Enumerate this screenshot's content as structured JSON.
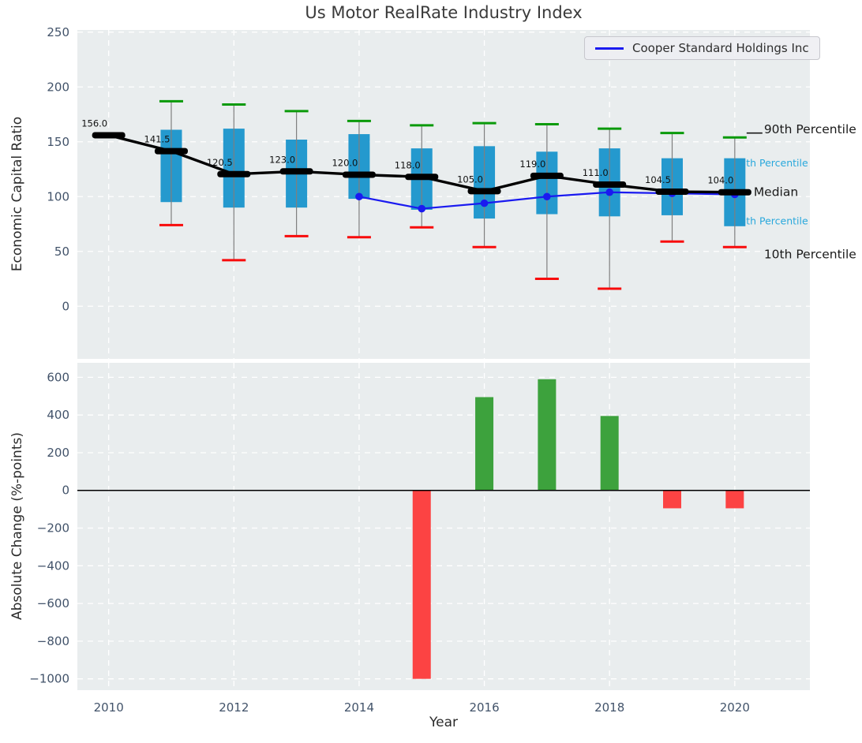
{
  "title": "Us Motor RealRate Industry Index",
  "legend": {
    "label": "Cooper Standard Holdings Inc"
  },
  "axis_labels": {
    "top_y": "Economic Capital Ratio",
    "bottom_y": "Absolute Change (%-points)",
    "x": "Year"
  },
  "colors": {
    "plot_bg": "#e9edee",
    "grid": "#ffffff",
    "tick_text": "#42536a",
    "box_fill": "#2499ce",
    "whisker": "#7f7f7f",
    "cap_top": "#0a9a0a",
    "cap_bottom": "#f80b0b",
    "median": "#000000",
    "company_line": "#1a1af0",
    "bar_positive": "#3da23d",
    "bar_negative": "#fc4343",
    "label_dark": "#1a1a1a",
    "label_cyan": "#29a8dc",
    "zero_line": "#000000",
    "annotation_text": "#111111"
  },
  "chart_data": [
    {
      "type": "boxplot+line",
      "title": "Us Motor RealRate Industry Index",
      "ylabel": "Economic Capital Ratio",
      "xlabel": "Year",
      "grid": true,
      "legend_position": "upper right",
      "xlim": [
        2009.5,
        2021.2
      ],
      "ylim": [
        -48,
        252
      ],
      "yticks": [
        0,
        50,
        100,
        150,
        200,
        250
      ],
      "ytick_labels": [
        "0",
        "50",
        "100",
        "150",
        "200",
        "250"
      ],
      "xticks": [
        2010,
        2012,
        2014,
        2016,
        2018,
        2020
      ],
      "xtick_labels": [
        "2010",
        "2012",
        "2014",
        "2016",
        "2018",
        "2020"
      ],
      "years": [
        2010,
        2011,
        2012,
        2013,
        2014,
        2015,
        2016,
        2017,
        2018,
        2019,
        2020
      ],
      "median": [
        156.0,
        141.5,
        120.5,
        123.0,
        120.0,
        118.0,
        105.0,
        119.0,
        111.0,
        104.5,
        104.0
      ],
      "median_labels": [
        "156.0",
        "141.5",
        "120.5",
        "123.0",
        "120.0",
        "118.0",
        "105.0",
        "119.0",
        "111.0",
        "104.5",
        "104.0"
      ],
      "p10": [
        null,
        74,
        42,
        64,
        63,
        72,
        54,
        25,
        16,
        59,
        54
      ],
      "p25": [
        null,
        95,
        90,
        90,
        98,
        88,
        80,
        84,
        82,
        83,
        73
      ],
      "p75": [
        null,
        161,
        162,
        152,
        157,
        144,
        146,
        141,
        144,
        135,
        135
      ],
      "p90": [
        null,
        187,
        184,
        178,
        169,
        165,
        167,
        166,
        162,
        158,
        154
      ],
      "series": [
        {
          "name": "Cooper Standard Holdings Inc",
          "x": [
            2014,
            2015,
            2016,
            2017,
            2018,
            2019,
            2020
          ],
          "y": [
            100,
            89,
            94,
            100,
            104,
            103,
            102
          ]
        }
      ],
      "right_labels": [
        {
          "text": "90th Percentile",
          "color": "dark",
          "v": 161.5,
          "dx": 37,
          "size": 15.5
        },
        {
          "text": "75th Percentile",
          "color": "cyan",
          "v": 130.5,
          "dx": -1.5,
          "size": 12.5
        },
        {
          "text": "Median",
          "color": "dark",
          "v": 104.0,
          "dx": 24,
          "size": 15.5
        },
        {
          "text": "25th Percentile",
          "color": "cyan",
          "v": 77.5,
          "dx": -1.5,
          "size": 12.5
        },
        {
          "text": "10th Percentile",
          "color": "dark",
          "v": 47.5,
          "dx": 37,
          "size": 15.5
        }
      ]
    },
    {
      "type": "bar",
      "ylabel": "Absolute Change (%-points)",
      "xlabel": "Year",
      "grid": true,
      "xlim": [
        2009.5,
        2021.2
      ],
      "ylim": [
        -1060,
        677
      ],
      "yticks": [
        -1000,
        -800,
        -600,
        -400,
        -200,
        0,
        200,
        400,
        600
      ],
      "ytick_labels": [
        "−1000",
        "−800",
        "−600",
        "−400",
        "−200",
        "0",
        "200",
        "400",
        "600"
      ],
      "xticks": [
        2010,
        2012,
        2014,
        2016,
        2018,
        2020
      ],
      "xtick_labels": [
        "2010",
        "2012",
        "2014",
        "2016",
        "2018",
        "2020"
      ],
      "categories": [
        2015,
        2016,
        2017,
        2018,
        2019,
        2020
      ],
      "values": [
        -1000,
        495,
        590,
        395,
        -95,
        -95
      ]
    }
  ]
}
